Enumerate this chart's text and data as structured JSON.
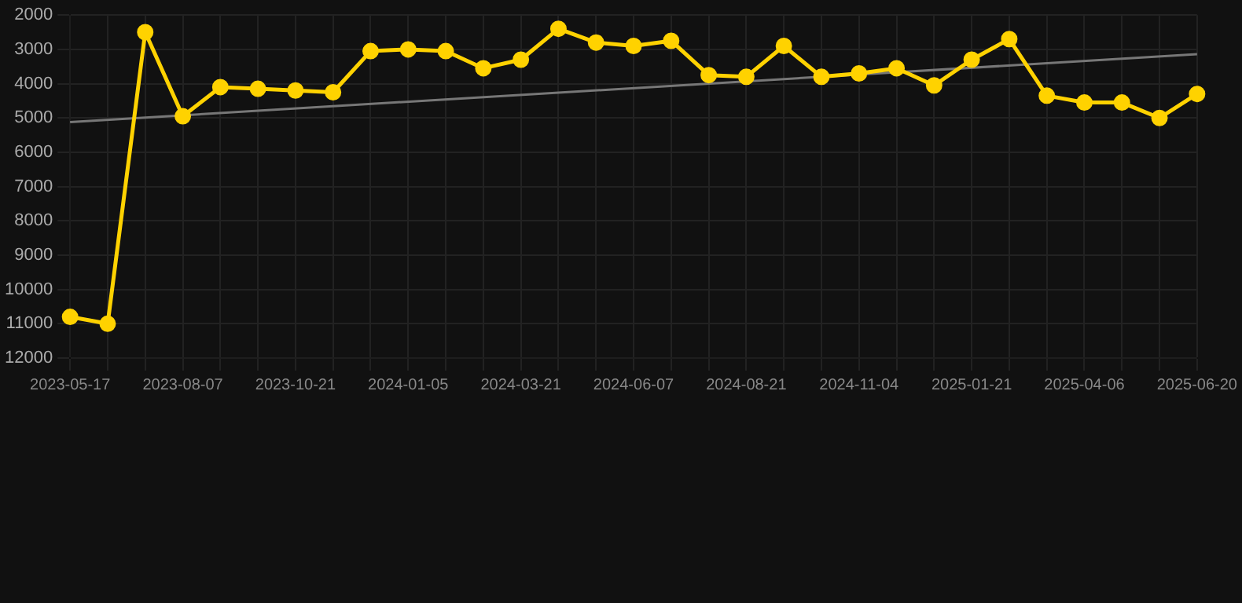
{
  "chart_data": {
    "type": "line",
    "categories": [
      "2023-05-17",
      null,
      null,
      "2023-08-07",
      null,
      null,
      "2023-10-21",
      null,
      null,
      "2024-01-05",
      null,
      null,
      "2024-03-21",
      null,
      null,
      "2024-06-07",
      null,
      null,
      "2024-08-21",
      null,
      null,
      "2024-11-04",
      null,
      null,
      "2025-01-21",
      null,
      null,
      "2025-04-06",
      null,
      null,
      "2025-06-20"
    ],
    "series": [
      {
        "color": "#ffd200",
        "values": [
          10800,
          11000,
          2500,
          4950,
          4100,
          4150,
          4200,
          4250,
          3050,
          3000,
          3050,
          3550,
          3300,
          2400,
          2800,
          2900,
          2750,
          3750,
          3800,
          2900,
          3800,
          3700,
          3550,
          4050,
          3300,
          2700,
          4350,
          4550,
          4550,
          5000,
          4300
        ]
      },
      {
        "type": "line",
        "color": "#777777",
        "values": [
          5120,
          null,
          null,
          null,
          null,
          null,
          null,
          null,
          null,
          null,
          null,
          null,
          null,
          null,
          null,
          null,
          null,
          null,
          null,
          null,
          null,
          null,
          null,
          null,
          null,
          null,
          null,
          null,
          null,
          null,
          3140
        ],
        "marker": "none"
      }
    ],
    "ylim": [
      12000,
      2000
    ],
    "yticks": [
      2000,
      3000,
      4000,
      5000,
      6000,
      7000,
      8000,
      9000,
      10000,
      11000,
      12000
    ],
    "grid": true,
    "legend": false,
    "marker": "circle",
    "line_style": "solid"
  }
}
